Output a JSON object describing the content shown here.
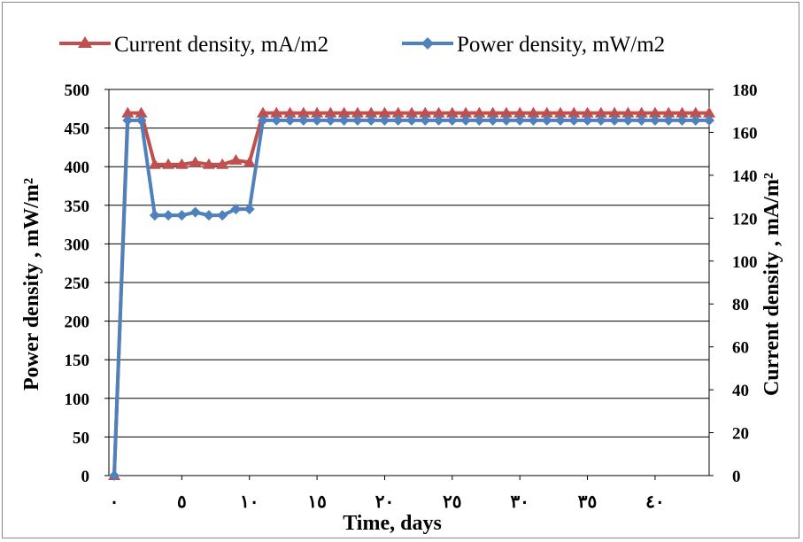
{
  "chart_data": {
    "type": "line",
    "xlabel": "Time, days",
    "ylabel_left": "Power density , mW/m²",
    "ylabel_right": "Current density , mA/m²",
    "ylim_left": [
      0,
      500
    ],
    "ylim_right": [
      0,
      180
    ],
    "yticks_left": [
      "0",
      "50",
      "100",
      "150",
      "200",
      "250",
      "300",
      "350",
      "400",
      "450",
      "500"
    ],
    "yticks_right": [
      "0",
      "20",
      "40",
      "60",
      "80",
      "100",
      "120",
      "140",
      "160",
      "180"
    ],
    "xticks": [
      {
        "value": 0,
        "label": "٠"
      },
      {
        "value": 5,
        "label": "٥"
      },
      {
        "value": 10,
        "label": "١٠"
      },
      {
        "value": 15,
        "label": "١٥"
      },
      {
        "value": 20,
        "label": "٢٠"
      },
      {
        "value": 25,
        "label": "٢٥"
      },
      {
        "value": 30,
        "label": "٣٠"
      },
      {
        "value": 35,
        "label": "٣٥"
      },
      {
        "value": 40,
        "label": "٤٠"
      }
    ],
    "xlim": [
      0,
      44
    ],
    "grid": "horizontal",
    "legend_position": "top",
    "x": [
      0,
      1,
      2,
      3,
      4,
      5,
      6,
      7,
      8,
      9,
      10,
      11,
      12,
      13,
      14,
      15,
      16,
      17,
      18,
      19,
      20,
      21,
      22,
      23,
      24,
      25,
      26,
      27,
      28,
      29,
      30,
      31,
      32,
      33,
      34,
      35,
      36,
      37,
      38,
      39,
      40,
      41,
      42,
      43,
      44
    ],
    "series": [
      {
        "name": "Current density, mA/m2",
        "axis": "right",
        "color": "#c0504d",
        "marker": "triangle",
        "values": [
          0,
          169,
          169,
          145,
          145,
          145,
          146,
          145,
          145,
          147,
          146,
          169,
          169,
          169,
          169,
          169,
          169,
          169,
          169,
          169,
          169,
          169,
          169,
          169,
          169,
          169,
          169,
          169,
          169,
          169,
          169,
          169,
          169,
          169,
          169,
          169,
          169,
          169,
          169,
          169,
          169,
          169,
          169,
          169,
          169
        ]
      },
      {
        "name": "Power density, mW/m2",
        "axis": "left",
        "color": "#4f81bd",
        "marker": "diamond",
        "values": [
          0,
          460,
          460,
          337,
          337,
          337,
          341,
          337,
          337,
          345,
          345,
          460,
          460,
          460,
          460,
          460,
          460,
          460,
          460,
          460,
          460,
          460,
          460,
          460,
          460,
          460,
          460,
          460,
          460,
          460,
          460,
          460,
          460,
          460,
          460,
          460,
          460,
          460,
          460,
          460,
          460,
          460,
          460,
          460,
          460
        ]
      }
    ]
  }
}
